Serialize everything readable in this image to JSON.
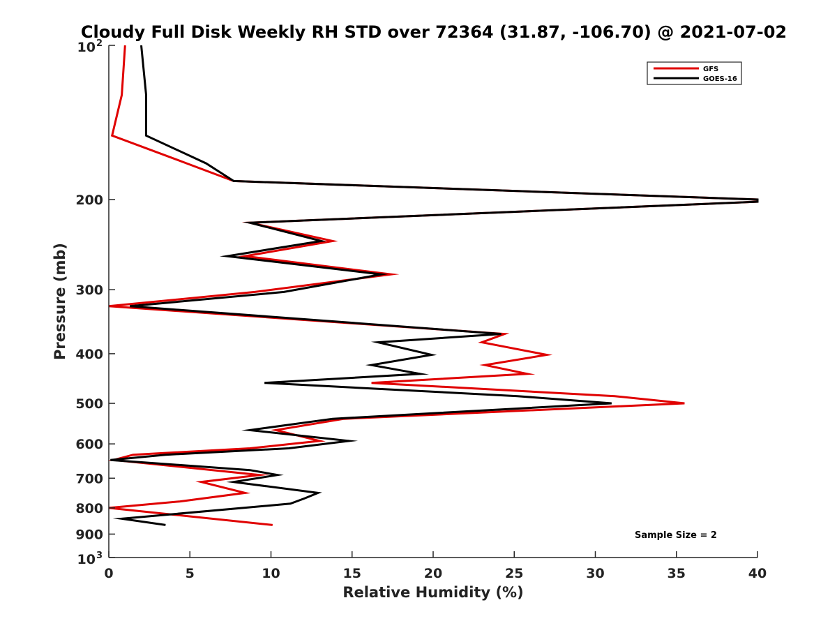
{
  "chart_data": {
    "type": "line",
    "title": "Cloudy Full Disk Weekly RH STD over 72364 (31.87, -106.70) @ 2021-07-02",
    "xlabel": "Relative Humidity (%)",
    "ylabel": "Pressure (mb)",
    "xlim": [
      0,
      40
    ],
    "ylim": [
      100,
      1000
    ],
    "yscale": "log",
    "y_reversed": true,
    "grid": false,
    "legend_position": "top-right",
    "x_ticks": [
      "0",
      "5",
      "10",
      "15",
      "20",
      "25",
      "30",
      "35",
      "40"
    ],
    "y_ticks": [
      {
        "value": 100,
        "base": "10",
        "exp": "2"
      },
      {
        "value": 200,
        "label": "200"
      },
      {
        "value": 300,
        "label": "300"
      },
      {
        "value": 400,
        "label": "400"
      },
      {
        "value": 500,
        "label": "500"
      },
      {
        "value": 600,
        "label": "600"
      },
      {
        "value": 700,
        "label": "700"
      },
      {
        "value": 800,
        "label": "800"
      },
      {
        "value": 900,
        "label": "900"
      },
      {
        "value": 1000,
        "base": "10",
        "exp": "3"
      }
    ],
    "series": [
      {
        "name": "GFS",
        "color": "#e00000",
        "points": [
          [
            1.0,
            100
          ],
          [
            0.8,
            125
          ],
          [
            0.2,
            150
          ],
          [
            4.8,
            170
          ],
          [
            7.7,
            184
          ],
          [
            40,
            200
          ],
          [
            40,
            202
          ],
          [
            8.7,
            222
          ],
          [
            13.8,
            241
          ],
          [
            8.4,
            258
          ],
          [
            17.4,
            280
          ],
          [
            9.0,
            303
          ],
          [
            0,
            323
          ],
          [
            24.4,
            366
          ],
          [
            23.0,
            380
          ],
          [
            27.0,
            402
          ],
          [
            23.2,
            421
          ],
          [
            25.8,
            438
          ],
          [
            16.2,
            456
          ],
          [
            31.2,
            484
          ],
          [
            35.5,
            500
          ],
          [
            14.5,
            536
          ],
          [
            10.3,
            564
          ],
          [
            13.0,
            592
          ],
          [
            8.7,
            612
          ],
          [
            1.5,
            630
          ],
          [
            0.3,
            645
          ],
          [
            9.3,
            690
          ],
          [
            5.7,
            712
          ],
          [
            8.4,
            748
          ],
          [
            4.4,
            777
          ],
          [
            0,
            800
          ],
          [
            10.1,
            864
          ]
        ]
      },
      {
        "name": "GOES-16",
        "color": "#000000",
        "points": [
          [
            2.0,
            100
          ],
          [
            2.3,
            125
          ],
          [
            2.3,
            150
          ],
          [
            6.0,
            170
          ],
          [
            7.7,
            184
          ],
          [
            40,
            200
          ],
          [
            40,
            202
          ],
          [
            8.7,
            222
          ],
          [
            13.1,
            241
          ],
          [
            7.3,
            258
          ],
          [
            16.8,
            280
          ],
          [
            10.8,
            303
          ],
          [
            1.3,
            323
          ],
          [
            24.2,
            366
          ],
          [
            16.6,
            380
          ],
          [
            19.9,
            402
          ],
          [
            16.2,
            421
          ],
          [
            19.2,
            438
          ],
          [
            9.6,
            456
          ],
          [
            25.2,
            484
          ],
          [
            31.0,
            500
          ],
          [
            13.8,
            536
          ],
          [
            8.7,
            564
          ],
          [
            14.8,
            592
          ],
          [
            11.1,
            612
          ],
          [
            3.5,
            630
          ],
          [
            0.1,
            645
          ],
          [
            8.7,
            675
          ],
          [
            10.4,
            690
          ],
          [
            7.7,
            712
          ],
          [
            12.9,
            748
          ],
          [
            12.1,
            766
          ],
          [
            11.2,
            785
          ],
          [
            0.8,
            840
          ],
          [
            3.5,
            864
          ]
        ]
      }
    ],
    "annotations": [
      "Sample Size = 2"
    ]
  }
}
